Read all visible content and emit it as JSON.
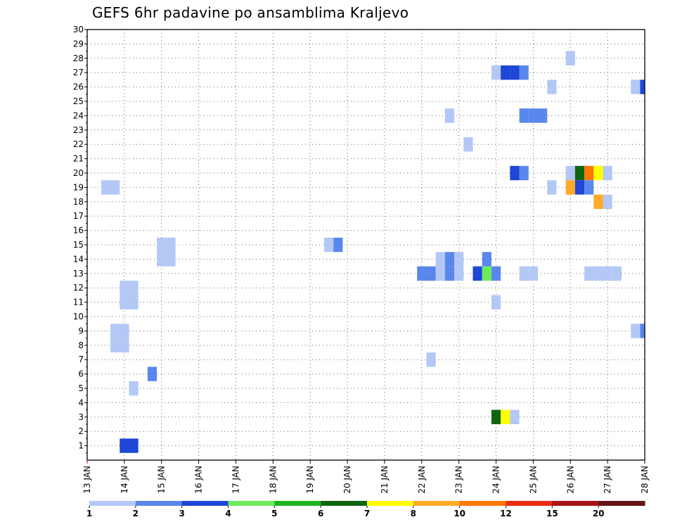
{
  "chart_data": {
    "type": "heatmap",
    "title": "GEFS 6hr padavine po ansamblima Kraljevo",
    "xlabel": "",
    "ylabel": "",
    "x_ticks": [
      "13 JAN",
      "14 JAN",
      "15 JAN",
      "16 JAN",
      "17 JAN",
      "18 JAN",
      "19 JAN",
      "20 JAN",
      "21 JAN",
      "22 JAN",
      "23 JAN",
      "24 JAN",
      "25 JAN",
      "26 JAN",
      "27 JAN",
      "28 JAN"
    ],
    "y_ticks": [
      "1",
      "2",
      "3",
      "4",
      "5",
      "6",
      "7",
      "8",
      "9",
      "10",
      "11",
      "12",
      "13",
      "14",
      "15",
      "16",
      "17",
      "18",
      "19",
      "20",
      "21",
      "22",
      "23",
      "24",
      "25",
      "26",
      "27",
      "28",
      "29",
      "30"
    ],
    "xlim": [
      0,
      60
    ],
    "ylim": [
      0,
      30
    ],
    "steps_per_day": 4,
    "grid": true,
    "legend": {
      "placement": "bottom",
      "colors": [
        "#b4c8f5",
        "#5a87eb",
        "#1e46d7",
        "#6eeb5a",
        "#1eb41e",
        "#0f640f",
        "#ffff00",
        "#ffaa28",
        "#ff7800",
        "#e62d14",
        "#aa1414",
        "#641414"
      ],
      "labels": [
        "1",
        "2",
        "3",
        "4",
        "5",
        "6",
        "7",
        "8",
        "10",
        "12",
        "15",
        "20"
      ]
    },
    "cells_columns": [
      "step",
      "member",
      "class"
    ],
    "cells": [
      [
        4,
        1,
        2
      ],
      [
        5,
        1,
        2
      ],
      [
        5,
        5,
        0
      ],
      [
        7,
        6,
        1
      ],
      [
        3,
        9,
        0
      ],
      [
        4,
        9,
        0
      ],
      [
        3,
        8,
        0
      ],
      [
        4,
        8,
        0
      ],
      [
        4,
        11,
        0
      ],
      [
        4,
        12,
        0
      ],
      [
        5,
        11,
        0
      ],
      [
        5,
        12,
        0
      ],
      [
        8,
        14,
        0
      ],
      [
        8,
        15,
        0
      ],
      [
        9,
        14,
        0
      ],
      [
        9,
        15,
        0
      ],
      [
        2,
        19,
        0
      ],
      [
        3,
        19,
        0
      ],
      [
        26,
        15,
        0
      ],
      [
        27,
        15,
        1
      ],
      [
        37,
        7,
        0
      ],
      [
        36,
        13,
        1
      ],
      [
        37,
        13,
        1
      ],
      [
        38,
        13,
        0
      ],
      [
        39,
        13,
        1
      ],
      [
        40,
        13,
        0
      ],
      [
        38,
        14,
        0
      ],
      [
        39,
        14,
        1
      ],
      [
        40,
        14,
        0
      ],
      [
        42,
        13,
        2
      ],
      [
        43,
        13,
        3
      ],
      [
        44,
        13,
        1
      ],
      [
        43,
        14,
        1
      ],
      [
        47,
        13,
        0
      ],
      [
        48,
        13,
        0
      ],
      [
        44,
        11,
        0
      ],
      [
        44,
        3,
        5
      ],
      [
        45,
        3,
        6
      ],
      [
        46,
        3,
        0
      ],
      [
        39,
        24,
        0
      ],
      [
        41,
        22,
        0
      ],
      [
        44,
        27,
        0
      ],
      [
        45,
        27,
        2
      ],
      [
        46,
        27,
        2
      ],
      [
        47,
        27,
        1
      ],
      [
        46,
        20,
        2
      ],
      [
        47,
        20,
        1
      ],
      [
        47,
        24,
        1
      ],
      [
        48,
        24,
        1
      ],
      [
        49,
        24,
        1
      ],
      [
        50,
        26,
        0
      ],
      [
        50,
        19,
        0
      ],
      [
        52,
        28,
        0
      ],
      [
        52,
        20,
        0
      ],
      [
        53,
        20,
        5
      ],
      [
        54,
        20,
        8
      ],
      [
        55,
        20,
        6
      ],
      [
        56,
        20,
        0
      ],
      [
        52,
        19,
        7
      ],
      [
        53,
        19,
        2
      ],
      [
        54,
        19,
        1
      ],
      [
        55,
        18,
        7
      ],
      [
        56,
        18,
        0
      ],
      [
        54,
        13,
        0
      ],
      [
        55,
        13,
        0
      ],
      [
        56,
        13,
        0
      ],
      [
        57,
        13,
        0
      ],
      [
        59,
        26,
        0
      ],
      [
        60,
        26,
        2
      ],
      [
        59,
        9,
        0
      ],
      [
        60,
        9,
        1
      ]
    ]
  }
}
